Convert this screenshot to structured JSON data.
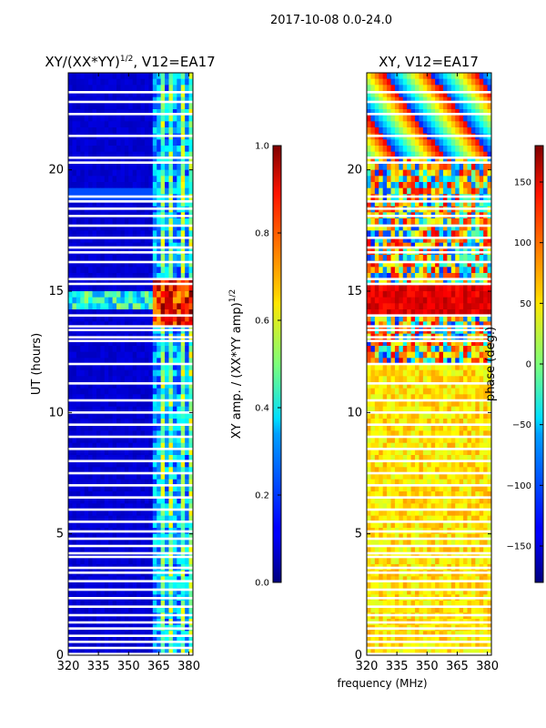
{
  "suptitle": "2017-10-08 0.0-24.0",
  "figure_xlabel": "frequency (MHz)",
  "chart_data": [
    {
      "type": "heatmap",
      "title_base": "XY/(XX*YY)",
      "title_exp": "1/2",
      "title_tail": ", V12=EA17",
      "xlabel": "",
      "ylabel": "UT (hours)",
      "xlim": [
        320,
        382
      ],
      "ylim": [
        0,
        24
      ],
      "xticks": [
        320,
        335,
        350,
        365,
        380
      ],
      "yticks": [
        0,
        5,
        10,
        15,
        20
      ],
      "colorbar": {
        "label_base": "XY amp. / (XX*YY amp)",
        "label_exp": "1/2",
        "range": [
          0.0,
          1.0
        ],
        "ticks": [
          "0.0",
          "0.2",
          "0.4",
          "0.6",
          "0.8",
          "1.0"
        ],
        "tick_values": [
          0.0,
          0.2,
          0.4,
          0.6,
          0.8,
          1.0
        ]
      },
      "colormap": "jet",
      "flagged_ut_hours": [
        0.05,
        0.3,
        0.55,
        0.8,
        1.1,
        1.35,
        1.65,
        2.0,
        2.35,
        2.7,
        3.05,
        3.4,
        3.6,
        4.05,
        4.2,
        4.5,
        4.8,
        5.1,
        5.5,
        6.0,
        6.5,
        7.0,
        7.5,
        8.0,
        8.5,
        9.0,
        9.5,
        10.0,
        10.5,
        11.2,
        12.0,
        12.95,
        13.1,
        13.4,
        13.55,
        14.0,
        15.3,
        15.5,
        16.2,
        16.6,
        16.8,
        17.2,
        17.7,
        18.1,
        18.4,
        18.7,
        18.9,
        20.3,
        20.5,
        21.4,
        22.3,
        22.8,
        23.2
      ]
    },
    {
      "type": "heatmap",
      "title": "XY, V12=EA17",
      "xlabel": "",
      "ylabel": "",
      "xlim": [
        320,
        382
      ],
      "ylim": [
        0,
        24
      ],
      "xticks": [
        320,
        335,
        350,
        365,
        380
      ],
      "yticks": [
        0,
        5,
        10,
        15,
        20
      ],
      "colorbar": {
        "label": "phase (deg.)",
        "range": [
          -180,
          180
        ],
        "ticks": [
          "−150",
          "−100",
          "−50",
          "0",
          "50",
          "100",
          "150"
        ],
        "tick_values": [
          -150,
          -100,
          -50,
          0,
          50,
          100,
          150
        ]
      },
      "colormap": "jet",
      "flagged_ut_hours": [
        0.05,
        0.3,
        0.55,
        0.8,
        1.1,
        1.35,
        1.65,
        2.0,
        2.35,
        2.7,
        3.05,
        3.4,
        3.6,
        4.05,
        4.2,
        4.5,
        4.8,
        5.1,
        5.5,
        6.0,
        6.5,
        7.0,
        7.5,
        8.0,
        8.5,
        9.0,
        9.5,
        10.0,
        10.5,
        11.2,
        12.0,
        12.95,
        13.1,
        13.4,
        13.55,
        14.0,
        15.3,
        15.5,
        16.2,
        16.6,
        16.8,
        17.2,
        17.7,
        18.1,
        18.4,
        18.7,
        18.9,
        20.3,
        20.5,
        21.4,
        22.3,
        22.8,
        23.2
      ]
    }
  ]
}
